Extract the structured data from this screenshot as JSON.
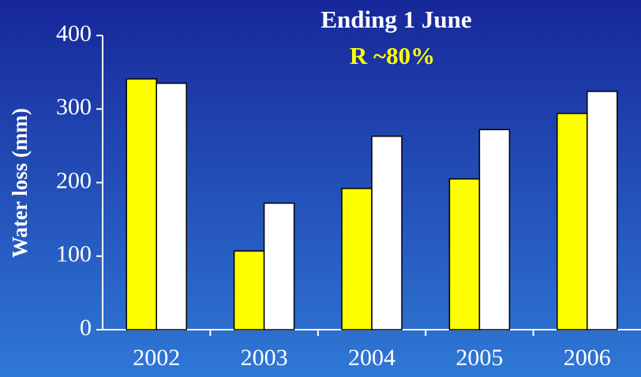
{
  "chart_data": {
    "type": "bar",
    "title": "Ending 1 June",
    "subtitle": "R ~80%",
    "y_label": "Water loss (mm)",
    "categories": [
      "2002",
      "2003",
      "2004",
      "2005",
      "2006"
    ],
    "series": [
      {
        "color": "#ffff00",
        "values": [
          341,
          107,
          192,
          205,
          294
        ]
      },
      {
        "color": "#ffffff",
        "values": [
          335,
          172,
          263,
          272,
          324
        ]
      }
    ],
    "ylim": [
      0,
      400
    ],
    "yticks": [
      0,
      100,
      200,
      300,
      400
    ],
    "subtitle_color": "#ffff00"
  }
}
